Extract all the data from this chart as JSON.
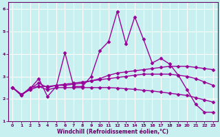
{
  "xlabel": "Windchill (Refroidissement éolien,°C)",
  "ylabel": "",
  "background_color": "#c8f0f0",
  "line_color": "#990099",
  "grid_color": "#ffffff",
  "xlim": [
    -0.5,
    23.5
  ],
  "ylim": [
    1,
    6.3
  ],
  "xticks": [
    0,
    1,
    2,
    3,
    4,
    5,
    6,
    7,
    8,
    9,
    10,
    11,
    12,
    13,
    14,
    15,
    16,
    17,
    18,
    19,
    20,
    21,
    22,
    23
  ],
  "yticks": [
    1,
    2,
    3,
    4,
    5,
    6
  ],
  "lines": [
    {
      "x": [
        0,
        1,
        2,
        3,
        4,
        5,
        6,
        7,
        8,
        9,
        10,
        11,
        12,
        13,
        14,
        15,
        16,
        17,
        18,
        19,
        20,
        21,
        22,
        23
      ],
      "y": [
        2.5,
        2.15,
        2.45,
        2.9,
        2.1,
        2.55,
        4.05,
        2.55,
        2.55,
        3.0,
        4.15,
        4.55,
        5.9,
        4.45,
        5.65,
        4.65,
        3.6,
        3.8,
        3.55,
        3.05,
        2.4,
        1.75,
        1.4,
        1.4
      ]
    },
    {
      "x": [
        0,
        1,
        2,
        3,
        4,
        5,
        6,
        7,
        8,
        9,
        10,
        11,
        12,
        13,
        14,
        15,
        16,
        17,
        18,
        19,
        20,
        21,
        22,
        23
      ],
      "y": [
        2.5,
        2.15,
        2.5,
        2.55,
        2.55,
        2.6,
        2.6,
        2.65,
        2.7,
        2.8,
        2.9,
        3.05,
        3.15,
        3.2,
        3.25,
        3.3,
        3.35,
        3.4,
        3.45,
        3.45,
        3.45,
        3.4,
        3.35,
        3.3
      ]
    },
    {
      "x": [
        0,
        1,
        2,
        3,
        4,
        5,
        6,
        7,
        8,
        9,
        10,
        11,
        12,
        13,
        14,
        15,
        16,
        17,
        18,
        19,
        20,
        21,
        22,
        23
      ],
      "y": [
        2.5,
        2.2,
        2.45,
        2.7,
        2.5,
        2.6,
        2.65,
        2.7,
        2.75,
        2.8,
        2.85,
        2.9,
        2.95,
        3.0,
        3.05,
        3.1,
        3.1,
        3.1,
        3.1,
        3.05,
        3.0,
        2.9,
        2.75,
        2.6
      ]
    },
    {
      "x": [
        0,
        1,
        2,
        3,
        4,
        5,
        6,
        7,
        8,
        9,
        10,
        11,
        12,
        13,
        14,
        15,
        16,
        17,
        18,
        19,
        20,
        21,
        22,
        23
      ],
      "y": [
        2.5,
        2.2,
        2.4,
        2.55,
        2.4,
        2.5,
        2.5,
        2.5,
        2.5,
        2.5,
        2.5,
        2.5,
        2.48,
        2.45,
        2.42,
        2.38,
        2.35,
        2.3,
        2.25,
        2.2,
        2.15,
        2.05,
        1.95,
        1.85
      ]
    }
  ],
  "marker": "D",
  "markersize": 2.5,
  "linewidth": 1.0,
  "xtick_fontsize": 4.5,
  "ytick_fontsize": 5.5,
  "xlabel_fontsize": 5.5,
  "spine_color": "#660066"
}
